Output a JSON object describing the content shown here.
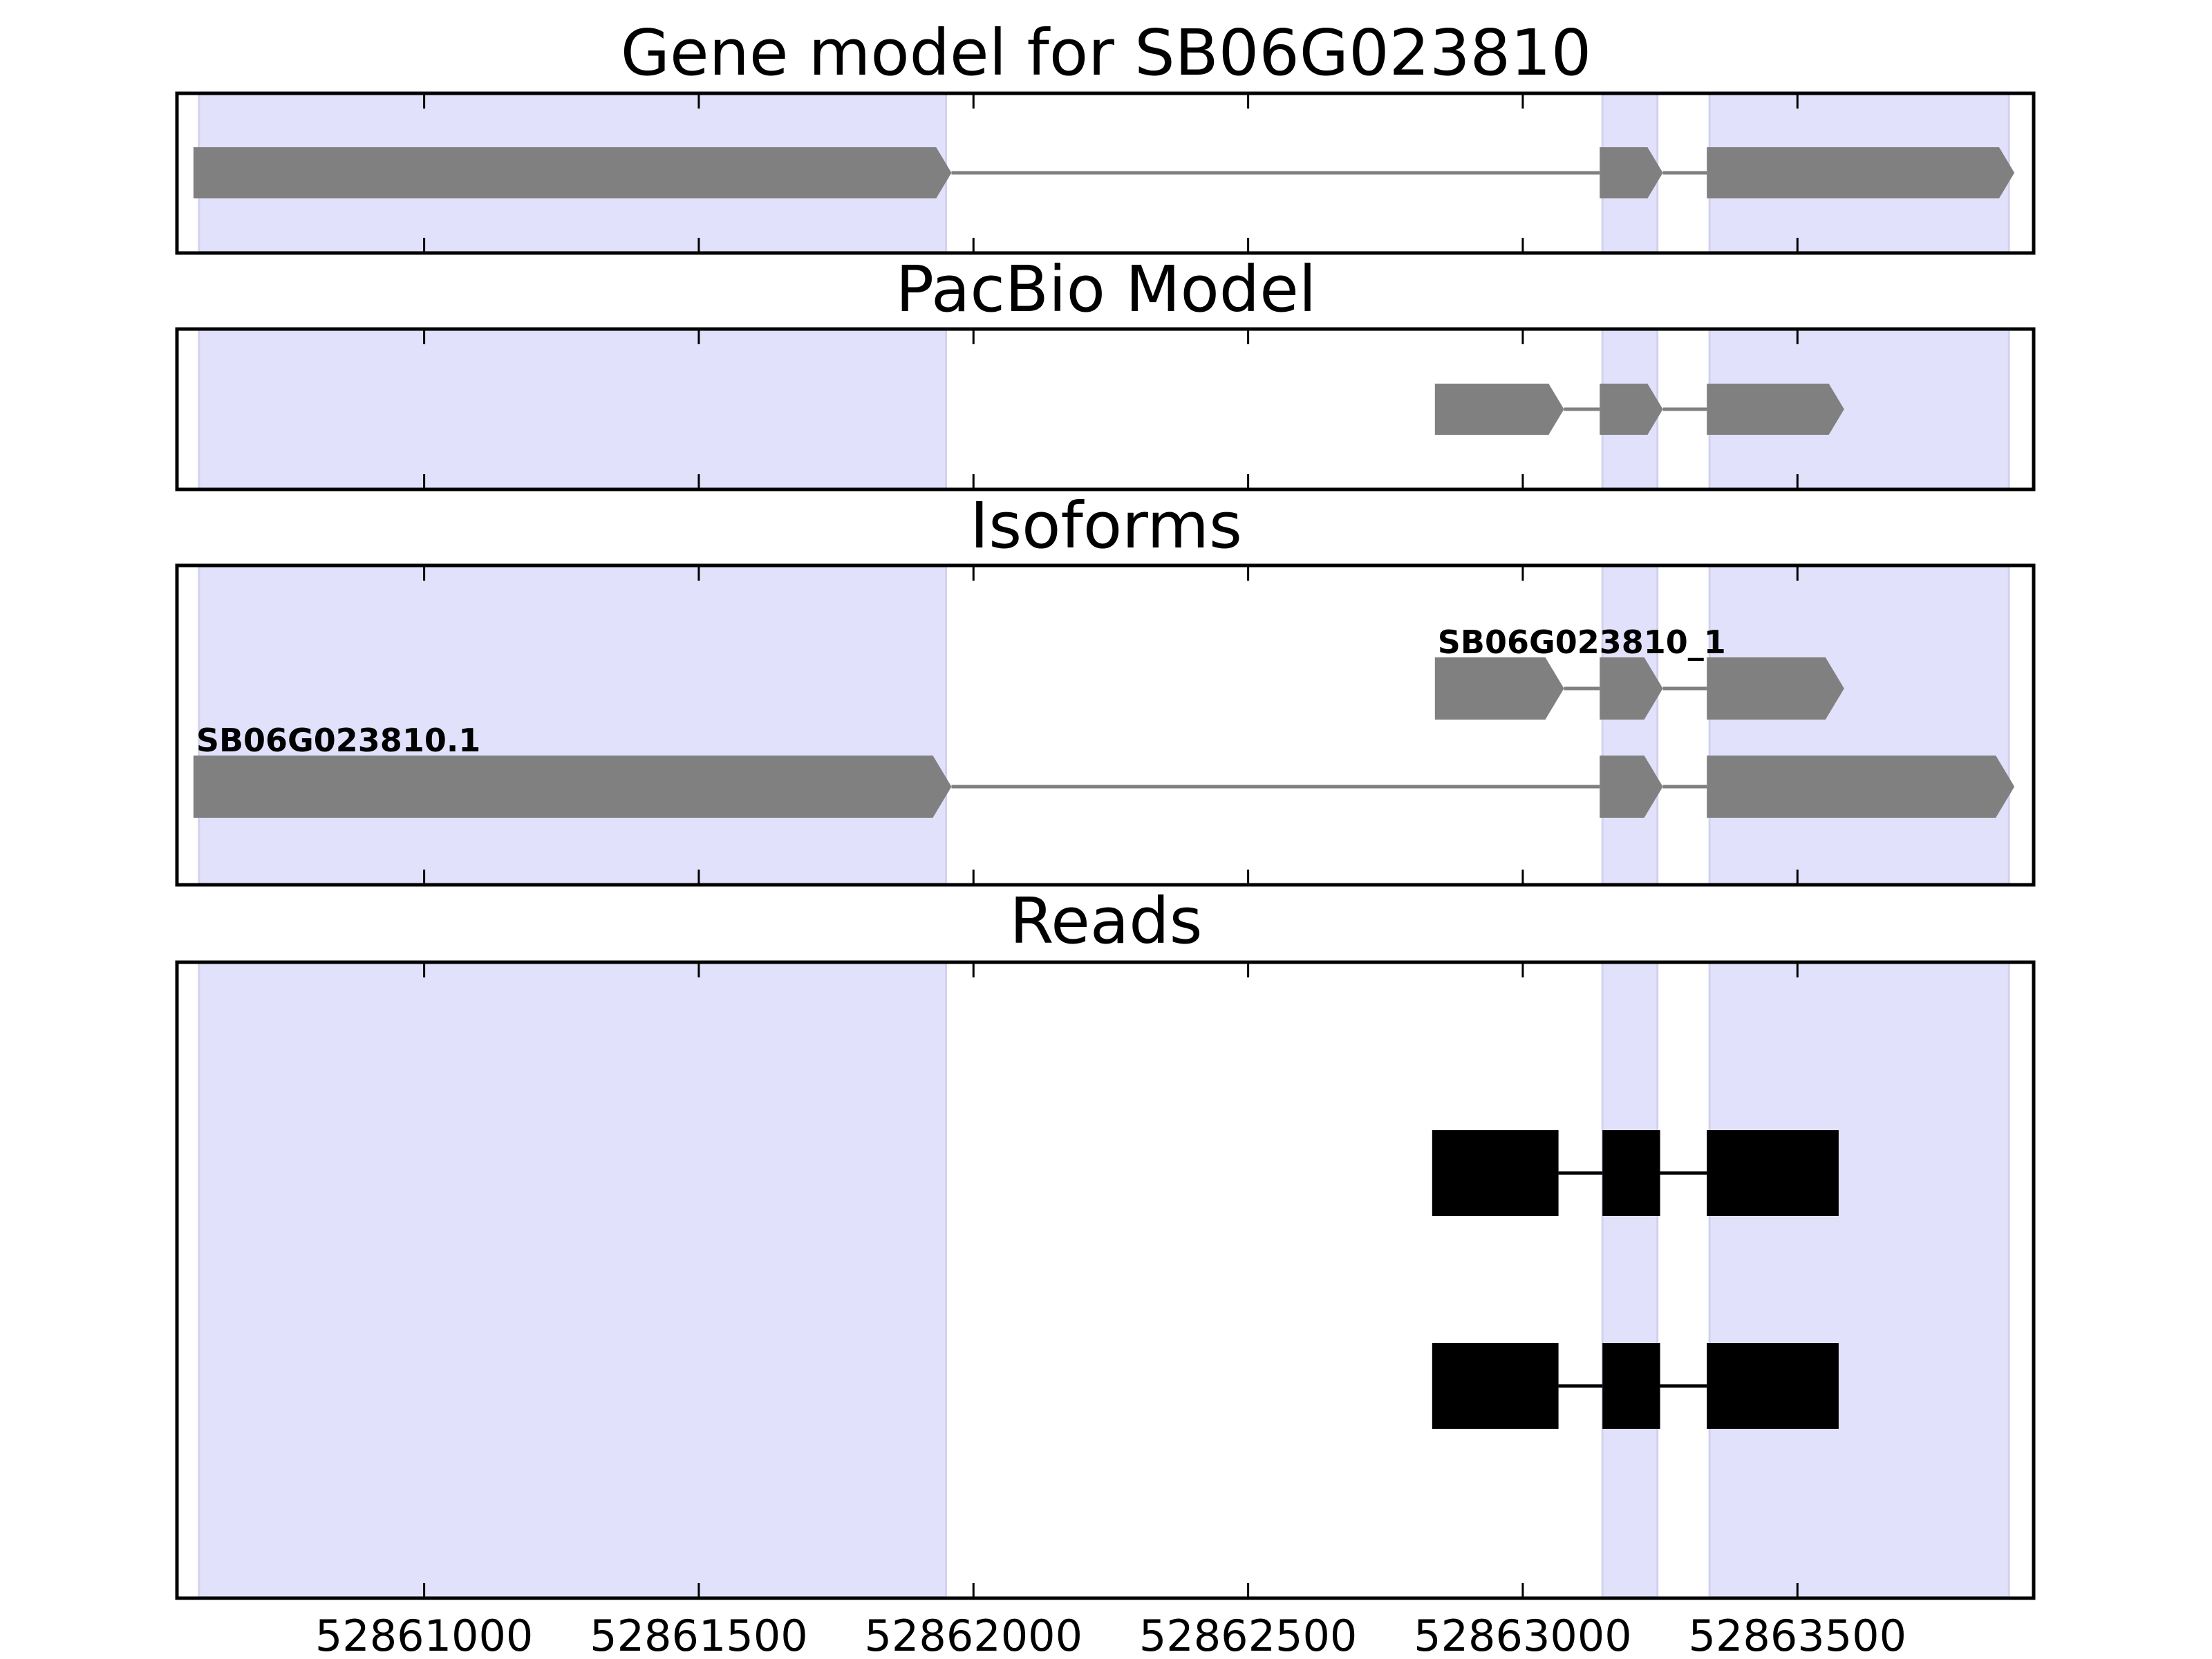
{
  "chart_data": {
    "type": "gene-model-tracks",
    "xlim": [
      52860550,
      52863930
    ],
    "x_ticks": [
      52861000,
      52861500,
      52862000,
      52862500,
      52863000,
      52863500
    ],
    "x_tick_labels": [
      "52861000",
      "52861500",
      "52862000",
      "52862500",
      "52863000",
      "52863500"
    ],
    "exon_highlights": [
      [
        52860590,
        52861950
      ],
      [
        52863145,
        52863245
      ],
      [
        52863340,
        52863885
      ]
    ],
    "colors": {
      "highlight": "#e1e1fb",
      "feature": "#808080",
      "read": "#000000"
    },
    "panels": [
      {
        "id": "gene",
        "title": "Gene model for SB06G023810",
        "rows": [
          {
            "label": "",
            "style": "arrow",
            "exons": [
              [
                52860580,
                52861960
              ],
              [
                52863140,
                52863255
              ],
              [
                52863335,
                52863895
              ]
            ]
          }
        ]
      },
      {
        "id": "pacbio",
        "title": "PacBio Model",
        "rows": [
          {
            "label": "",
            "style": "arrow",
            "exons": [
              [
                52862840,
                52863075
              ],
              [
                52863140,
                52863255
              ],
              [
                52863335,
                52863585
              ]
            ]
          }
        ]
      },
      {
        "id": "isoforms",
        "title": "Isoforms",
        "rows": [
          {
            "label": "SB06G023810.1",
            "style": "arrow",
            "exons": [
              [
                52860580,
                52861960
              ],
              [
                52863140,
                52863255
              ],
              [
                52863335,
                52863895
              ]
            ]
          },
          {
            "label": "SB06G023810_1",
            "style": "arrow",
            "exons": [
              [
                52862840,
                52863075
              ],
              [
                52863140,
                52863255
              ],
              [
                52863335,
                52863585
              ]
            ]
          }
        ]
      },
      {
        "id": "reads",
        "title": "Reads",
        "rows": [
          {
            "label": "",
            "style": "block",
            "exons": [
              [
                52862835,
                52863065
              ],
              [
                52863145,
                52863250
              ],
              [
                52863335,
                52863575
              ]
            ]
          },
          {
            "label": "",
            "style": "block",
            "exons": [
              [
                52862835,
                52863065
              ],
              [
                52863145,
                52863250
              ],
              [
                52863335,
                52863575
              ]
            ]
          }
        ]
      }
    ]
  }
}
